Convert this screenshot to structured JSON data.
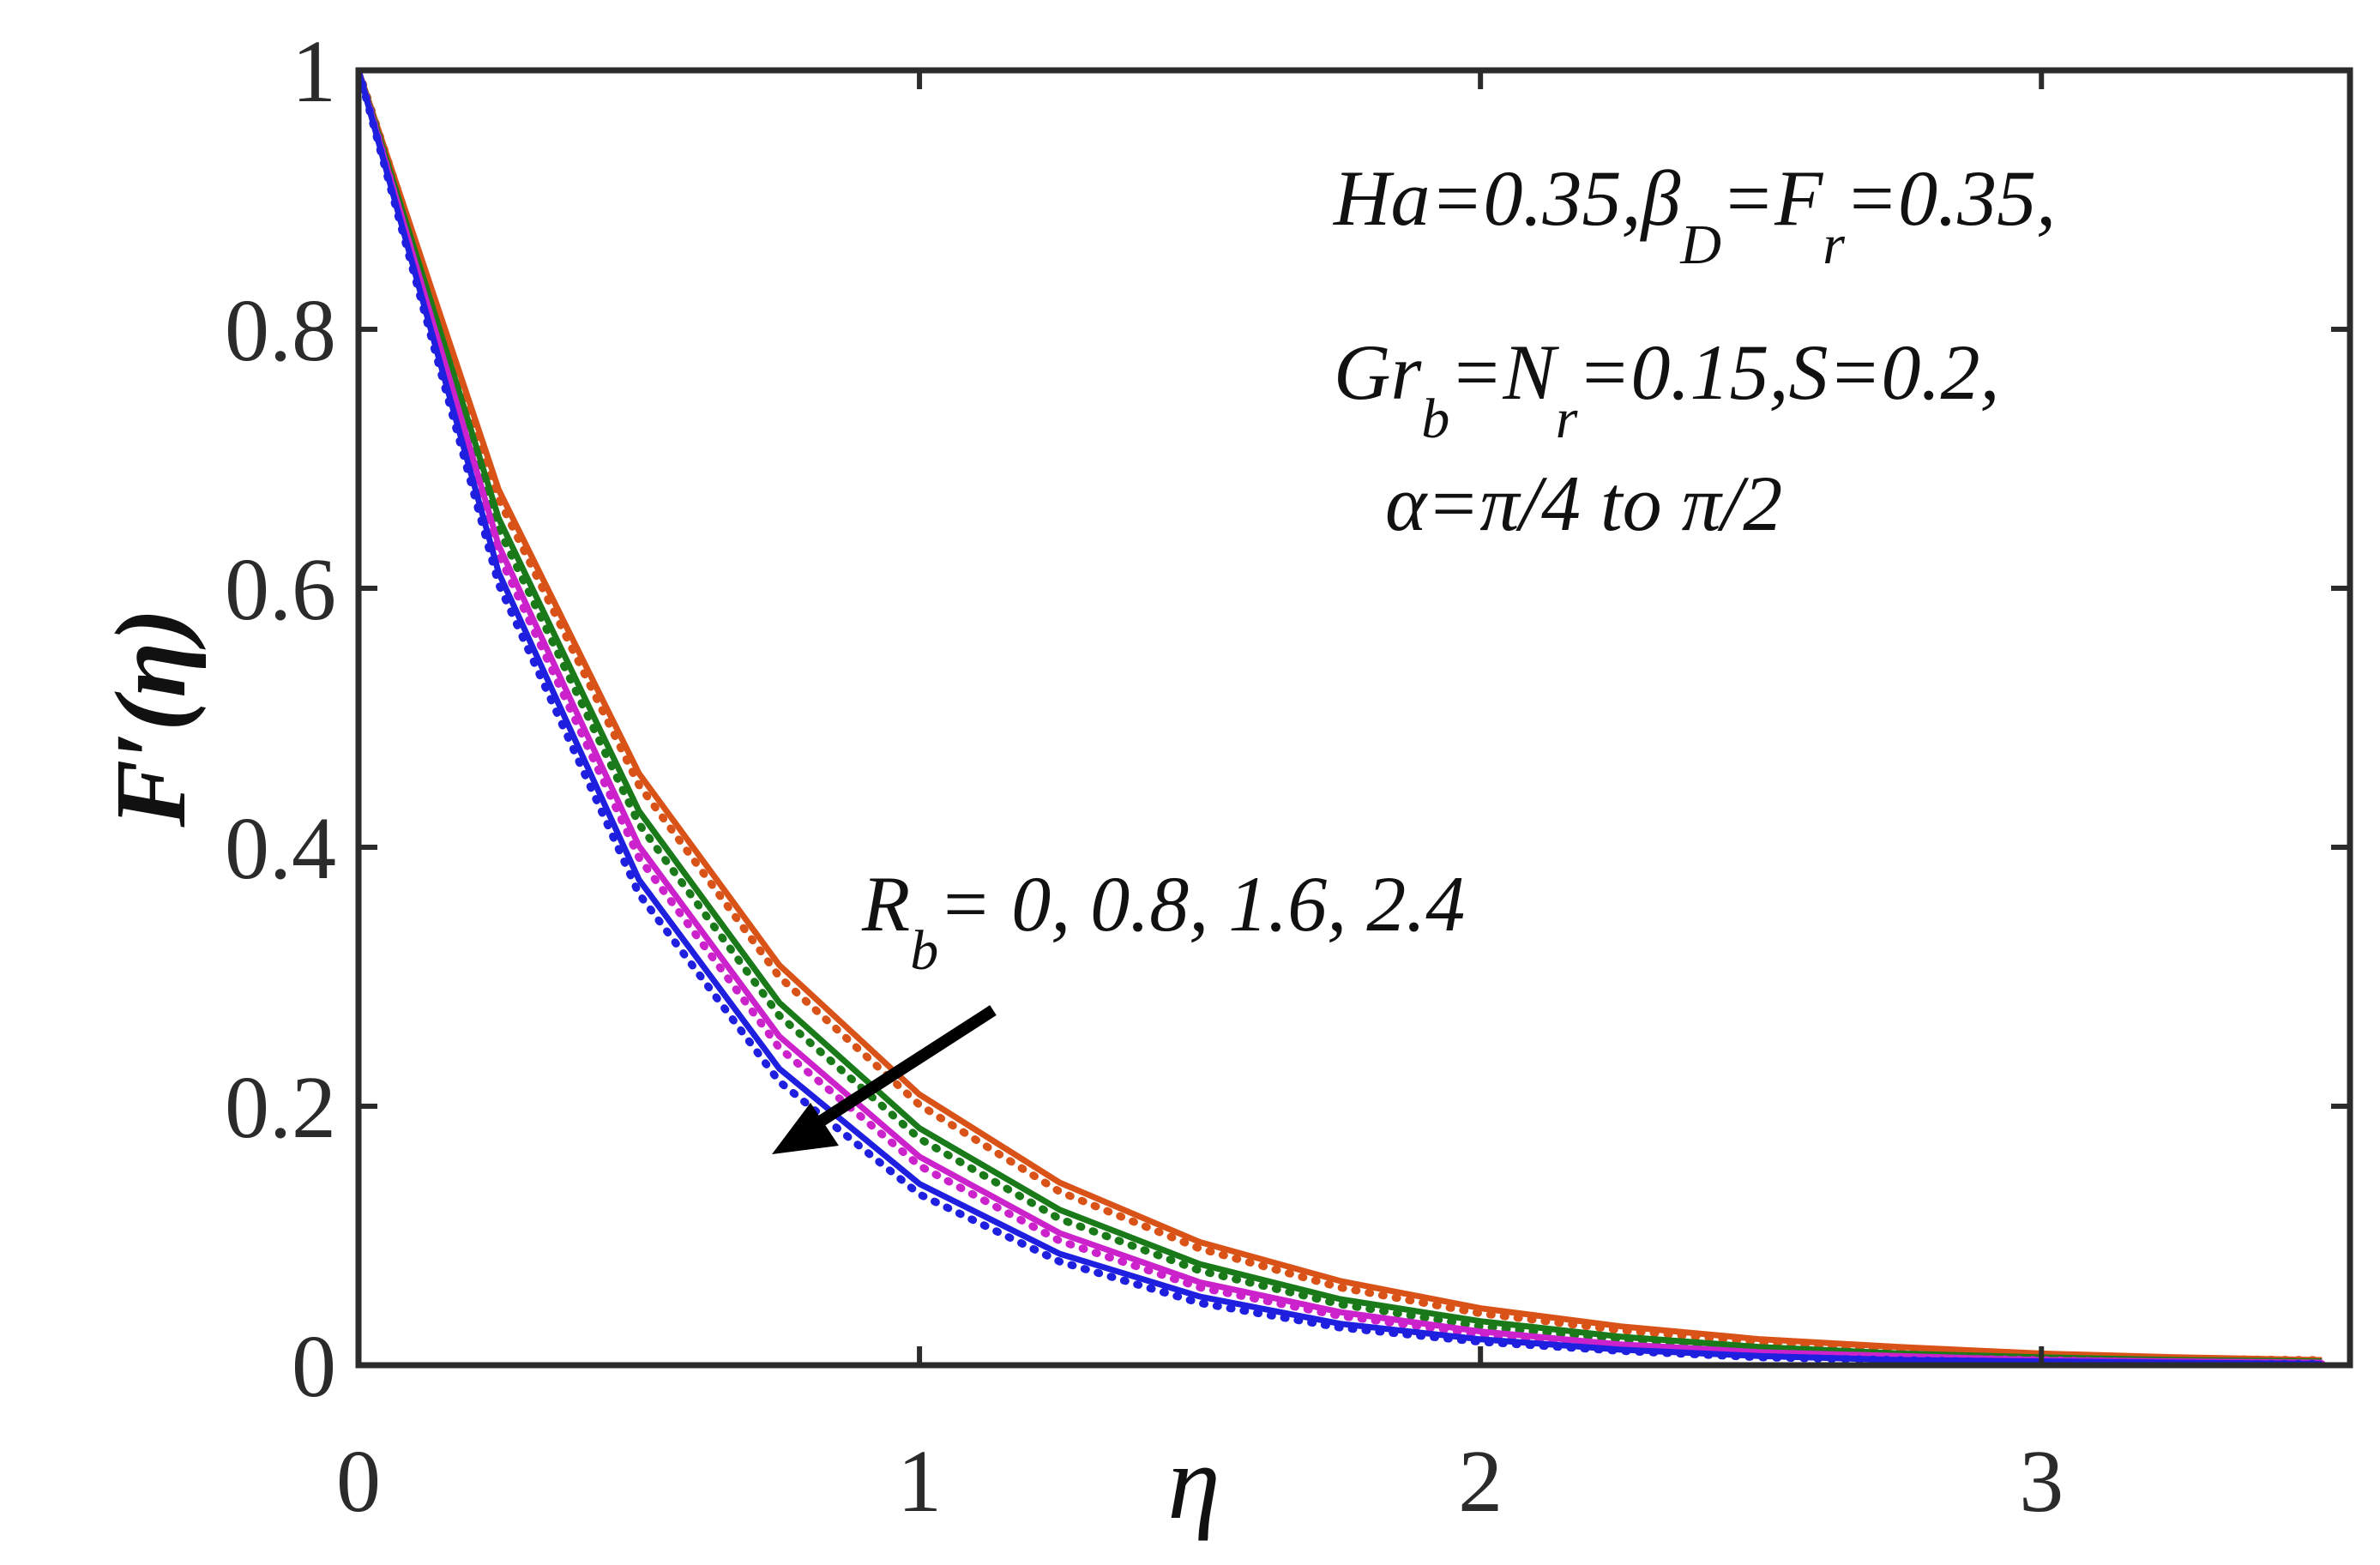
{
  "chart_data": {
    "type": "line",
    "xlabel": "η",
    "ylabel": "F′(η)",
    "xlim": [
      0,
      3.55
    ],
    "ylim": [
      0,
      1
    ],
    "xticks": [
      "0",
      "1",
      "2",
      "3"
    ],
    "yticks": [
      "0",
      "0.2",
      "0.4",
      "0.6",
      "0.8",
      "1"
    ],
    "grid": false,
    "annotations": {
      "params_line1": [
        "Ha=0.35,β",
        "D",
        "=F",
        "r",
        "=0.35,"
      ],
      "params_line2": [
        "Gr",
        "b",
        "=N",
        "r",
        "=0.15,S=0.2,"
      ],
      "params_line3": "α=π/4 to π/2",
      "rb_label": [
        "R",
        "b",
        "= 0, 0.8, 1.6, 2.4"
      ]
    },
    "x": [
      0,
      0.25,
      0.5,
      0.75,
      1.0,
      1.25,
      1.5,
      1.75,
      2.0,
      2.25,
      2.5,
      2.75,
      3.0,
      3.25,
      3.5
    ],
    "series": [
      {
        "color": "#d95319",
        "style": "solid",
        "values": [
          1,
          0.676,
          0.457,
          0.309,
          0.209,
          0.141,
          0.095,
          0.065,
          0.044,
          0.03,
          0.02,
          0.014,
          0.009,
          0.006,
          0.004
        ]
      },
      {
        "color": "#d95319",
        "style": "dotted",
        "values": [
          1,
          0.669,
          0.448,
          0.3,
          0.201,
          0.134,
          0.09,
          0.06,
          0.04,
          0.027,
          0.018,
          0.012,
          0.008,
          0.005,
          0.004
        ]
      },
      {
        "color": "#1a7a1a",
        "style": "solid",
        "values": [
          1,
          0.654,
          0.428,
          0.28,
          0.183,
          0.12,
          0.078,
          0.051,
          0.034,
          0.022,
          0.014,
          0.009,
          0.006,
          0.004,
          0.003
        ]
      },
      {
        "color": "#1a7a1a",
        "style": "dotted",
        "values": [
          1,
          0.646,
          0.418,
          0.27,
          0.175,
          0.113,
          0.073,
          0.047,
          0.03,
          0.02,
          0.013,
          0.008,
          0.005,
          0.003,
          0.002
        ]
      },
      {
        "color": "#cc22cc",
        "style": "solid",
        "values": [
          1,
          0.633,
          0.401,
          0.254,
          0.161,
          0.102,
          0.064,
          0.041,
          0.026,
          0.016,
          0.01,
          0.007,
          0.004,
          0.003,
          0.002
        ]
      },
      {
        "color": "#cc22cc",
        "style": "dotted",
        "values": [
          1,
          0.626,
          0.392,
          0.245,
          0.154,
          0.096,
          0.06,
          0.038,
          0.024,
          0.015,
          0.009,
          0.006,
          0.004,
          0.002,
          0.001
        ]
      },
      {
        "color": "#1f1fe0",
        "style": "solid",
        "values": [
          1,
          0.612,
          0.375,
          0.229,
          0.14,
          0.086,
          0.053,
          0.032,
          0.02,
          0.012,
          0.007,
          0.004,
          0.003,
          0.002,
          0.001
        ]
      },
      {
        "color": "#1f1fe0",
        "style": "dotted",
        "values": [
          1,
          0.603,
          0.364,
          0.219,
          0.132,
          0.08,
          0.048,
          0.029,
          0.018,
          0.011,
          0.006,
          0.004,
          0.002,
          0.001,
          0.001
        ]
      }
    ]
  }
}
